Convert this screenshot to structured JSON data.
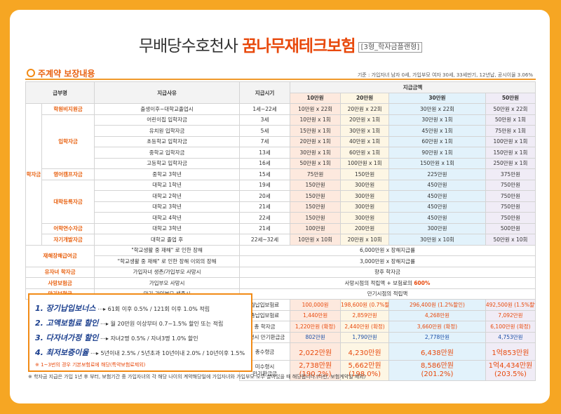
{
  "header": {
    "title_pre": "무배당수호천사 ",
    "title_hl": "꿈나무재테크보험",
    "title_sub": "[3형_학자금플랜형]"
  },
  "section": {
    "title": "주계약 보장내용",
    "basis": "기준 : 가입자녀 남자 0세, 가입부모 여자 30세, 33세만기, 12년납, 공시이율 3.06%"
  },
  "table": {
    "h_kind": "급부명",
    "h_reason": "지급사유",
    "h_time": "지급시기",
    "h_amount": "지급금액",
    "cols": [
      "10만원",
      "20만원",
      "30만원",
      "50만원"
    ],
    "group_hakja": "학자금",
    "rows": [
      {
        "cat": "학원비지원금",
        "reason": "출생이후~대학교졸업시",
        "time": "1세~22세",
        "v": [
          "10만원 x 22회",
          "20만원 x 22회",
          "30만원 x 22회",
          "50만원 x 22회"
        ]
      },
      {
        "cat": "입학자금",
        "reason": "어린이집 입학자금",
        "time": "3세",
        "v": [
          "10만원 x 1회",
          "20만원 x 1회",
          "30만원 x 1회",
          "50만원 x 1회"
        ]
      },
      {
        "reason": "유치원 입학자금",
        "time": "5세",
        "v": [
          "15만원 x 1회",
          "30만원 x 1회",
          "45만원 x 1회",
          "75만원 x 1회"
        ]
      },
      {
        "reason": "초등학교 입학자금",
        "time": "7세",
        "v": [
          "20만원 x 1회",
          "40만원 x 1회",
          "60만원 x 1회",
          "100만원 x 1회"
        ]
      },
      {
        "reason": "중학교 입학자금",
        "time": "13세",
        "v": [
          "30만원 x 1회",
          "60만원 x 1회",
          "90만원 x 1회",
          "150만원 x 1회"
        ]
      },
      {
        "reason": "고등학교 입학자금",
        "time": "16세",
        "v": [
          "50만원 x 1회",
          "100만원 x 1회",
          "150만원 x 1회",
          "250만원 x 1회"
        ]
      },
      {
        "cat": "영어캠프자금",
        "reason": "중학교 3학년",
        "time": "15세",
        "v": [
          "75만원",
          "150만원",
          "225만원",
          "375만원"
        ]
      },
      {
        "cat": "대학등록자금",
        "reason": "대학교 1학년",
        "time": "19세",
        "v": [
          "150만원",
          "300만원",
          "450만원",
          "750만원"
        ]
      },
      {
        "reason": "대학교 2학년",
        "time": "20세",
        "v": [
          "150만원",
          "300만원",
          "450만원",
          "750만원"
        ]
      },
      {
        "reason": "대학교 3학년",
        "time": "21세",
        "v": [
          "150만원",
          "300만원",
          "450만원",
          "750만원"
        ]
      },
      {
        "reason": "대학교 4학년",
        "time": "22세",
        "v": [
          "150만원",
          "300만원",
          "450만원",
          "750만원"
        ]
      },
      {
        "cat": "어학연수자금",
        "reason": "대학교 3학년",
        "time": "21세",
        "v": [
          "100만원",
          "200만원",
          "300만원",
          "500만원"
        ]
      },
      {
        "cat": "자기개발자금",
        "reason": "대학교 졸업 후",
        "time": "22세~32세",
        "v": [
          "10만원 x 10회",
          "20만원 x 10회",
          "30만원 x 10회",
          "50만원 x 10회"
        ]
      }
    ],
    "disability": {
      "cat": "재해장해급여금",
      "r1": "\"학교생활 중 재해\" 로 인한 장해",
      "v1": "6,000만원 x 장해지급률",
      "r2": "\"학교생활 중 재해\" 로 인한 장해 이외의 장해",
      "v2": "3,000만원 x 장해지급률"
    },
    "orphan": {
      "cat": "유자녀 학자금",
      "reason": "가입자녀 생존/가입부모 사망시",
      "val": "향후 학자금"
    },
    "death": {
      "cat": "사망보험금",
      "reason": "가입부모 사망시",
      "val_pre": "사망시점의 적립액 + 보험료의 ",
      "val_hl": "600%"
    },
    "maturity": {
      "cat": "만기보험금",
      "reason": "만기 가입부모 생존시",
      "val": "만기시점의 적립액"
    },
    "summary": [
      {
        "label": "월납입보험료",
        "v": [
          "100,000원",
          "198,600원 (0.7%할인)",
          "296,400원 (1.2%할인)",
          "492,500원 (1.5%할인)"
        ]
      },
      {
        "label": "총납입보험료",
        "v": [
          "1,440만원",
          "2,859만원",
          "4,268만원",
          "7,092만원"
        ]
      },
      {
        "label": "총 학자금",
        "v": [
          "1,220만원 (확정)",
          "2,440만원 (확정)",
          "3,660만원 (확정)",
          "6,100만원 (확정)"
        ]
      },
      {
        "label": "수령시 만기환급금",
        "v": [
          "802만원",
          "1,790만원",
          "2,778만원",
          "4,753만원"
        ]
      },
      {
        "label": "총수령금",
        "v": [
          "2,022만원",
          "4,230만원",
          "6,438만원",
          "1억853만원"
        ]
      },
      {
        "label1": "미수령시",
        "label2": "만기환급금",
        "v": [
          "2,738만원",
          "5,662만원",
          "8,586만원",
          "1억4,434만원"
        ],
        "p": [
          "(190.2%)",
          "(198.0%)",
          "(201.2%)",
          "(203.5%)"
        ]
      }
    ]
  },
  "promo": {
    "items": [
      {
        "head": "1. 장기납입보너스",
        "text": " ⋯▸ 61회 이후 0.5% / 121회 이후 1.0% 적립"
      },
      {
        "head": "2. 고액보험료 할인",
        "text": " ⋯▸ 월 20만원 이상부터 0.7~1.5% 할인 또는 적립"
      },
      {
        "head": "3. 다자녀가정 할인",
        "text": " ⋯▸ 자녀2명 0.5% / 자녀3명 1.0% 할인"
      },
      {
        "head": "4. 최저보증이율",
        "text": " ⋯▸ 5년이내 2.5% / 5년초과 10년이내 2.0% / 10년이후 1.5%"
      }
    ],
    "note": "※ 1~3번의 경우 기본보험료에 해당(특약보험료제외)"
  },
  "footnote": "※ 학자금 지급은 가입 1년 후 부터, 보험기간 중 가입자녀의 각 해당 나이의 계약해당일에 가입자녀와 가입부모 모두 살아있을 때 해당됩니다.(다만, 보험계약일 제외)"
}
